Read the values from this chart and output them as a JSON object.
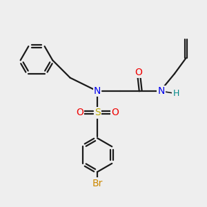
{
  "bg_color": "#eeeeee",
  "bond_color": "#1a1a1a",
  "N_color": "#0000ee",
  "O_color": "#ee0000",
  "S_color": "#bbaa00",
  "Br_color": "#cc8800",
  "H_color": "#008888",
  "line_width": 1.6,
  "figsize": [
    3.0,
    3.0
  ],
  "dpi": 100,
  "xlim": [
    0,
    10
  ],
  "ylim": [
    0,
    10
  ]
}
